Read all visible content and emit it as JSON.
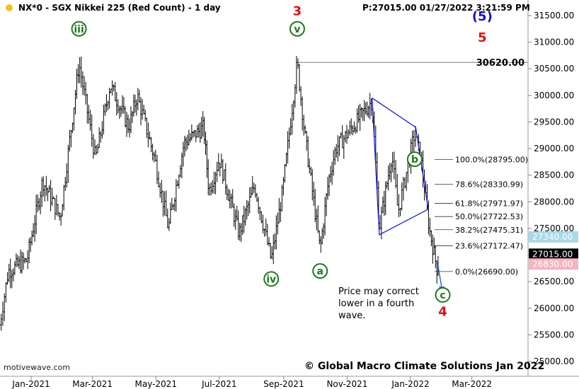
{
  "header": {
    "symbol_title": "NX*0 - SGX Nikkei 225 (Red Count) - 1 day",
    "price_time": "P:27015.00  01/27/2022 3:21:59 PM"
  },
  "watermark_left": "motivewave.com",
  "copyright": "© Global Macro Climate Solutions Jan 2022",
  "annotation_text": [
    "Price may correct",
    "lower in a fourth",
    "wave."
  ],
  "colors": {
    "green_label": "#1a7a1a",
    "red_label": "#e01010",
    "blue_label": "#1010c0",
    "triangle": "#1a1adc",
    "arrow": "#1a50e0",
    "bars": "#000000",
    "last_price_bg": "#000000",
    "upper_tag_bg": "#a8d8ea",
    "lower_tag_bg": "#f4b6bd"
  },
  "chart_data": {
    "type": "ohlc",
    "ylim": [
      24800,
      31800
    ],
    "y_ticks": [
      "25000.00",
      "25500.00",
      "26000.00",
      "26500.00",
      "27000.00",
      "27500.00",
      "28000.00",
      "28500.00",
      "29000.00",
      "29500.00",
      "30000.00",
      "30500.00",
      "31000.00",
      "31500.00"
    ],
    "x_ticks": [
      "Jan-2021",
      "Mar-2021",
      "May-2021",
      "Jul-2021",
      "Sep-2021",
      "Nov-2021",
      "Jan-2022",
      "Mar-2022"
    ],
    "price_points": [
      [
        "2020-12-01",
        25600
      ],
      [
        "2020-12-10",
        26700
      ],
      [
        "2020-12-28",
        26900
      ],
      [
        "2021-01-12",
        28400
      ],
      [
        "2021-01-29",
        27700
      ],
      [
        "2021-02-16",
        30600
      ],
      [
        "2021-03-04",
        28800
      ],
      [
        "2021-03-18",
        30200
      ],
      [
        "2021-04-05",
        29400
      ],
      [
        "2021-04-13",
        30000
      ],
      [
        "2021-04-30",
        28800
      ],
      [
        "2021-05-13",
        27500
      ],
      [
        "2021-05-28",
        29100
      ],
      [
        "2021-06-16",
        29400
      ],
      [
        "2021-06-21",
        28200
      ],
      [
        "2021-07-01",
        28800
      ],
      [
        "2021-07-20",
        27400
      ],
      [
        "2021-08-04",
        28300
      ],
      [
        "2021-08-20",
        26900
      ],
      [
        "2021-08-31",
        28200
      ],
      [
        "2021-09-14",
        30620
      ],
      [
        "2021-09-21",
        29300
      ],
      [
        "2021-10-06",
        27100
      ],
      [
        "2021-10-14",
        28400
      ],
      [
        "2021-10-21",
        29000
      ],
      [
        "2021-11-10",
        29500
      ],
      [
        "2021-11-25",
        29900
      ],
      [
        "2021-12-02",
        27500
      ],
      [
        "2021-12-14",
        28900
      ],
      [
        "2021-12-20",
        27800
      ],
      [
        "2022-01-05",
        29300
      ],
      [
        "2022-01-11",
        28800
      ],
      [
        "2022-01-19",
        27500
      ],
      [
        "2022-01-27",
        26690
      ],
      [
        "2022-01-28",
        27015
      ]
    ],
    "horizontal_line": {
      "value": 30620,
      "label": "30620.00"
    },
    "fib_levels": [
      {
        "value": 28795,
        "label": "100.0%(28795.00)"
      },
      {
        "value": 28330.99,
        "label": "78.6%(28330.99)"
      },
      {
        "value": 27971.97,
        "label": "61.8%(27971.97)"
      },
      {
        "value": 27722.53,
        "label": "50.0%(27722.53)"
      },
      {
        "value": 27475.31,
        "label": "38.2%(27475.31)"
      },
      {
        "value": 27172.47,
        "label": "23.6%(27172.47)"
      },
      {
        "value": 26690,
        "label": "0.0%(26690.00)"
      }
    ],
    "price_tags": [
      {
        "value": 27340,
        "label": "27340.00",
        "kind": "upper"
      },
      {
        "value": 27015,
        "label": "27015.00",
        "kind": "last"
      },
      {
        "value": 26830,
        "label": "26830.00",
        "kind": "lower"
      }
    ],
    "wave_labels": [
      {
        "text": "iii",
        "date": "2021-02-16",
        "price": 31250,
        "style": "green-circle"
      },
      {
        "text": "iv",
        "date": "2021-08-20",
        "price": 26550,
        "style": "green-circle"
      },
      {
        "text": "v",
        "date": "2021-09-14",
        "price": 31250,
        "style": "green-circle"
      },
      {
        "text": "3",
        "date": "2021-09-14",
        "price": 31600,
        "style": "red"
      },
      {
        "text": "a",
        "date": "2021-10-06",
        "price": 26700,
        "style": "green-circle"
      },
      {
        "text": "b",
        "date": "2022-01-05",
        "price": 28800,
        "style": "green-circle"
      },
      {
        "text": "c",
        "date": "2022-02-01",
        "price": 26250,
        "style": "green-circle"
      },
      {
        "text": "4",
        "date": "2022-02-01",
        "price": 25950,
        "style": "red"
      },
      {
        "text": "(5)",
        "date": "2022-03-11",
        "price": 31500,
        "style": "blue"
      },
      {
        "text": "5",
        "date": "2022-03-11",
        "price": 31100,
        "style": "red"
      }
    ],
    "triangle": [
      [
        "2021-11-25",
        29950
      ],
      [
        "2022-01-06",
        29400
      ],
      [
        "2022-01-18",
        27860
      ],
      [
        "2021-12-02",
        27380
      ],
      [
        "2021-11-25",
        29950
      ]
    ],
    "arrow": [
      [
        "2022-01-27",
        26850
      ],
      [
        "2022-01-31",
        26300
      ]
    ]
  }
}
